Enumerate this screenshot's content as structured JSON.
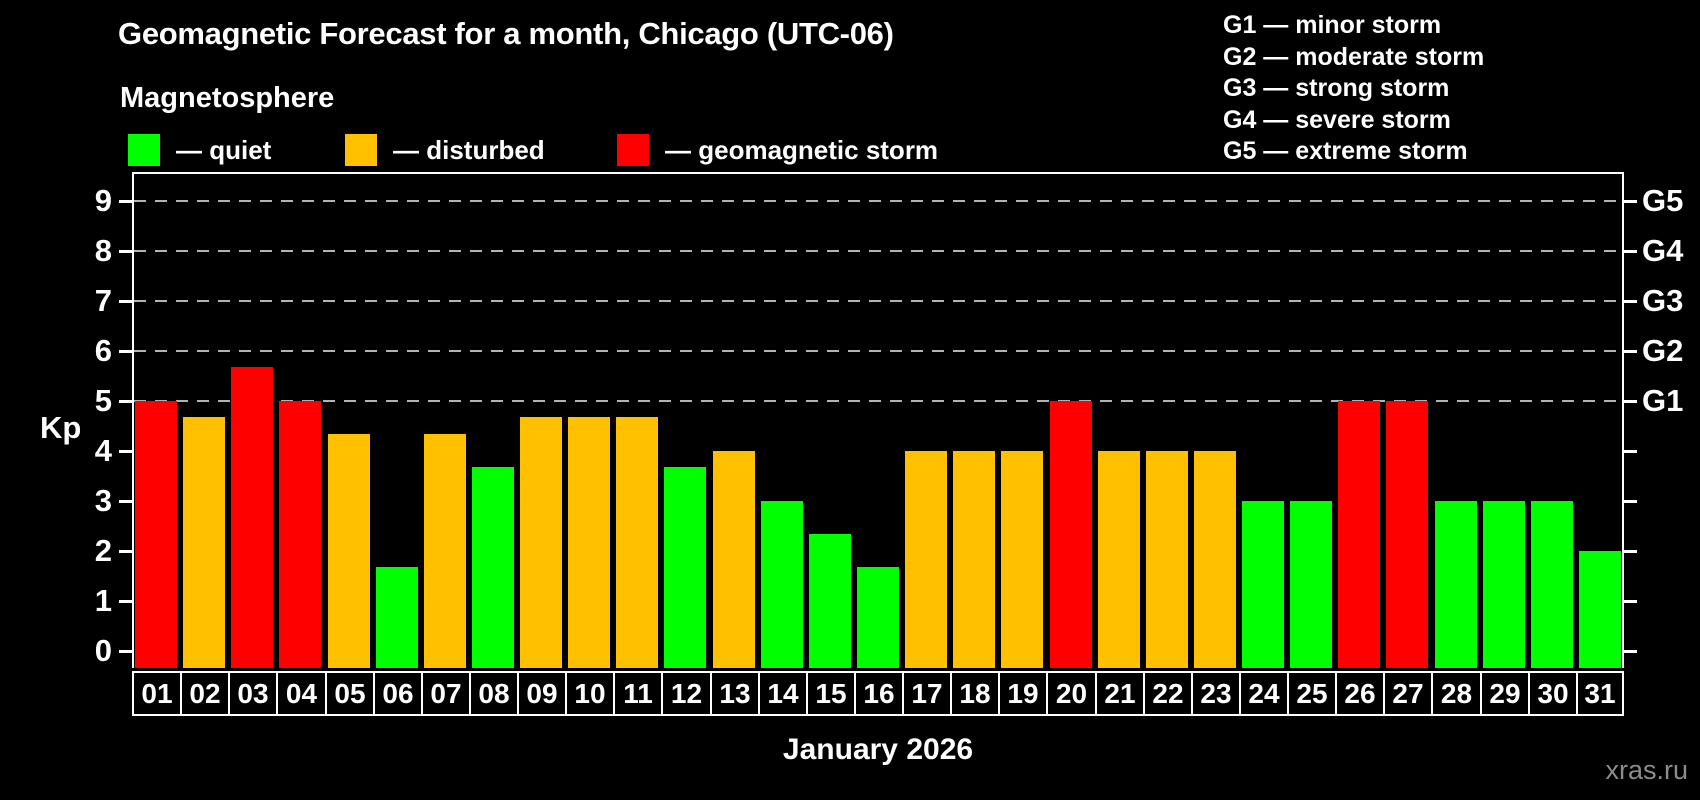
{
  "page": {
    "title": "Geomagnetic Forecast for a month, Chicago (UTC-06)",
    "subtitle": "Magnetosphere",
    "watermark": "xras.ru"
  },
  "legend": {
    "items": [
      {
        "id": "quiet",
        "label": "— quiet",
        "color": "#00ff00"
      },
      {
        "id": "disturbed",
        "label": "— disturbed",
        "color": "#ffc000"
      },
      {
        "id": "storm",
        "label": "— geomagnetic storm",
        "color": "#ff0000"
      }
    ]
  },
  "storm_scale": {
    "items": [
      "G1 — minor storm",
      "G2 — moderate storm",
      "G3 — strong storm",
      "G4 — severe storm",
      "G5 — extreme storm"
    ]
  },
  "chart_data": {
    "type": "bar",
    "title": "Geomagnetic Forecast for a month, Chicago (UTC-06)",
    "xlabel": "January 2026",
    "ylabel": "Kp",
    "ylim": [
      0,
      9.5
    ],
    "y_ticks": [
      0,
      1,
      2,
      3,
      4,
      5,
      6,
      7,
      8,
      9
    ],
    "gridlines_at": [
      5,
      6,
      7,
      8,
      9
    ],
    "grid_style": "dashed",
    "legend_position": "top-left",
    "right_axis": [
      {
        "kp": 5,
        "label": "G1"
      },
      {
        "kp": 6,
        "label": "G2"
      },
      {
        "kp": 7,
        "label": "G3"
      },
      {
        "kp": 8,
        "label": "G4"
      },
      {
        "kp": 9,
        "label": "G5"
      }
    ],
    "categories": [
      "01",
      "02",
      "03",
      "04",
      "05",
      "06",
      "07",
      "08",
      "09",
      "10",
      "11",
      "12",
      "13",
      "14",
      "15",
      "16",
      "17",
      "18",
      "19",
      "20",
      "21",
      "22",
      "23",
      "24",
      "25",
      "26",
      "27",
      "28",
      "29",
      "30",
      "31"
    ],
    "values": [
      5,
      4.67,
      5.67,
      5,
      4.33,
      1.67,
      4.33,
      3.67,
      4.67,
      4.67,
      4.67,
      3.67,
      4,
      3,
      2.33,
      1.67,
      4,
      4,
      4,
      5,
      4,
      4,
      4,
      3,
      3,
      5,
      5,
      3,
      3,
      3,
      2
    ],
    "statuses": [
      "storm",
      "disturbed",
      "storm",
      "storm",
      "disturbed",
      "quiet",
      "disturbed",
      "quiet",
      "disturbed",
      "disturbed",
      "disturbed",
      "quiet",
      "disturbed",
      "quiet",
      "quiet",
      "quiet",
      "disturbed",
      "disturbed",
      "disturbed",
      "storm",
      "disturbed",
      "disturbed",
      "disturbed",
      "quiet",
      "quiet",
      "storm",
      "storm",
      "quiet",
      "quiet",
      "quiet",
      "quiet"
    ]
  },
  "colors": {
    "background": "#000000",
    "quiet": "#00ff00",
    "disturbed": "#ffc000",
    "storm": "#ff0000",
    "axis": "#ffffff",
    "grid": "#b3b3b3",
    "watermark": "#8c8c8c"
  }
}
